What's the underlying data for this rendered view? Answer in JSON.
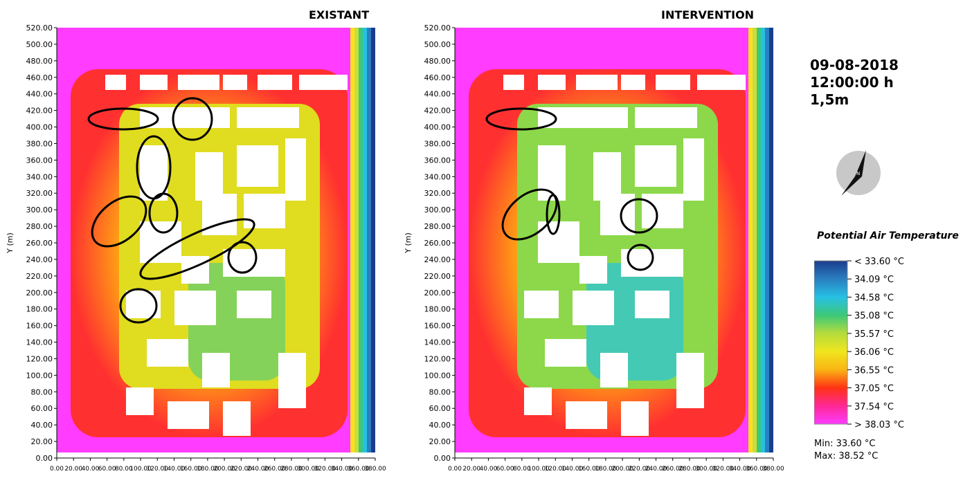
{
  "panels": {
    "existant": {
      "title": "EXISTANT",
      "ylabel": "Y (m)"
    },
    "intervention": {
      "title": "INTERVENTION",
      "ylabel": "Y (m)"
    }
  },
  "info": {
    "date": "09-08-2018",
    "time": "12:00:00 h",
    "height": "1,5m"
  },
  "compass": {
    "icon": "north-arrow-icon",
    "label": "N"
  },
  "legend": {
    "title": "Potential Air Temperature",
    "items": [
      "< 33.60 °C",
      "34.09  °C",
      "34.58  °C",
      "35.08  °C",
      "35.57  °C",
      "36.06  °C",
      "36.55  °C",
      "37.05  °C",
      "37.54  °C",
      "> 38.03 °C"
    ],
    "colors": [
      "#1a3c8c",
      "#2a7fc0",
      "#27c0e4",
      "#3cc878",
      "#b4dc3c",
      "#f0e61e",
      "#fab414",
      "#ff3214",
      "#ff2896",
      "#ff3cff"
    ]
  },
  "minmax": {
    "min": "Min: 33.60 °C",
    "max": "Max: 38.52 °C"
  },
  "chart_data": [
    {
      "type": "heatmap",
      "title": "EXISTANT",
      "ylabel": "Y (m)",
      "xlabel": "",
      "ylim": [
        0,
        520
      ],
      "xlim": [
        0,
        380
      ],
      "y_ticks": [
        "0.00",
        "20.00",
        "40.00",
        "60.00",
        "80.00",
        "100.00",
        "120.00",
        "140.00",
        "160.00",
        "180.00",
        "200.00",
        "220.00",
        "240.00",
        "260.00",
        "280.00",
        "300.00",
        "320.00",
        "340.00",
        "360.00",
        "380.00",
        "400.00",
        "420.00",
        "440.00",
        "460.00",
        "480.00",
        "500.00",
        "520.00"
      ],
      "x_ticks": [
        "0.00",
        "20.00",
        "40.00",
        "60.00",
        "80.00",
        "100.00",
        "120.00",
        "140.00",
        "160.00",
        "180.00",
        "200.00",
        "220.00",
        "240.00",
        "260.00",
        "280.00",
        "300.00",
        "320.00",
        "340.00",
        "360.00",
        "380.00"
      ],
      "highlighted_zones_count": 8
    },
    {
      "type": "heatmap",
      "title": "INTERVENTION",
      "ylabel": "Y (m)",
      "xlabel": "",
      "ylim": [
        0,
        520
      ],
      "xlim": [
        0,
        380
      ],
      "y_ticks": [
        "0.00",
        "20.00",
        "40.00",
        "60.00",
        "80.00",
        "100.00",
        "120.00",
        "140.00",
        "160.00",
        "180.00",
        "200.00",
        "220.00",
        "240.00",
        "260.00",
        "280.00",
        "300.00",
        "320.00",
        "340.00",
        "360.00",
        "380.00",
        "400.00",
        "420.00",
        "440.00",
        "460.00",
        "480.00",
        "500.00",
        "520.00"
      ],
      "x_ticks": [
        "0.00",
        "20.00",
        "40.00",
        "60.00",
        "80.00",
        "100.00",
        "120.00",
        "140.00",
        "160.00",
        "180.00",
        "200.00",
        "220.00",
        "240.00",
        "260.00",
        "280.00",
        "300.00",
        "320.00",
        "340.00",
        "360.00",
        "380.00"
      ],
      "highlighted_zones_count": 5
    }
  ]
}
